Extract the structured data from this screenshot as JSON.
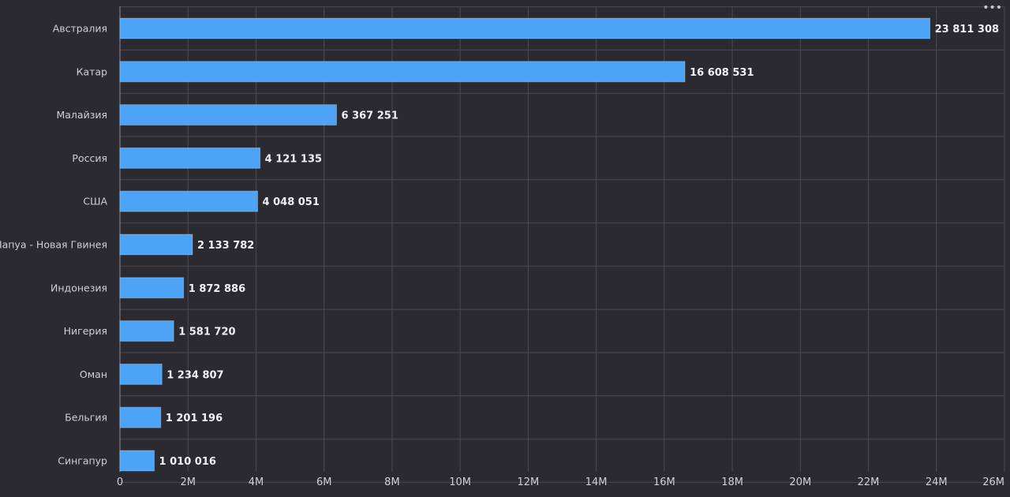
{
  "menu": {
    "more_label": "•••"
  },
  "colors": {
    "bar": "#4da3f5",
    "background": "#2b2a31",
    "grid": "#4a4950",
    "text": "#d0d0d4",
    "label": "#f0f0f2"
  },
  "chart_data": {
    "type": "bar",
    "orientation": "horizontal",
    "title": "",
    "xlabel": "",
    "ylabel": "",
    "categories": [
      "Австралия",
      "Катар",
      "Малайзия",
      "Россия",
      "США",
      "Папуа - Новая Гвинея",
      "Индонезия",
      "Нигерия",
      "Оман",
      "Бельгия",
      "Сингапур"
    ],
    "values": [
      23811308,
      16608531,
      6367251,
      4121135,
      4048051,
      2133782,
      1872886,
      1581720,
      1234807,
      1201196,
      1010016
    ],
    "value_labels": [
      "23 811 308",
      "16 608 531",
      "6 367 251",
      "4 121 135",
      "4 048 051",
      "2 133 782",
      "1 872 886",
      "1 581 720",
      "1 234 807",
      "1 201 196",
      "1 010 016"
    ],
    "xlim": [
      0,
      26000000
    ],
    "x_ticks": [
      0,
      2000000,
      4000000,
      6000000,
      8000000,
      10000000,
      12000000,
      14000000,
      16000000,
      18000000,
      20000000,
      22000000,
      24000000,
      26000000
    ],
    "x_tick_labels": [
      "0",
      "2M",
      "4M",
      "6M",
      "8M",
      "10M",
      "12M",
      "14M",
      "16M",
      "18M",
      "20M",
      "22M",
      "24M",
      "26M"
    ],
    "grid": true,
    "legend": "none"
  }
}
